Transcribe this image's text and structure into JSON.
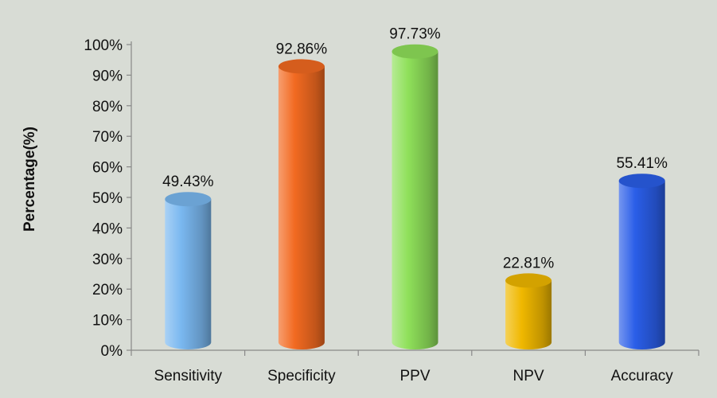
{
  "chart_data": {
    "type": "bar",
    "bar_style": "cylinder",
    "categories": [
      "Sensitivity",
      "Specificity",
      "PPV",
      "NPV",
      "Accuracy"
    ],
    "series": [
      {
        "values": [
          49.43,
          92.86,
          97.73,
          22.81,
          55.41
        ],
        "value_labels": [
          "49.43%",
          "92.86%",
          "97.73%",
          "22.81%",
          "55.41%"
        ],
        "colors": [
          "#7ab8f0",
          "#f26a21",
          "#8fe05a",
          "#f0b800",
          "#2a5ee8"
        ]
      }
    ],
    "title": "",
    "xlabel": "",
    "ylabel": "Percentage(%)",
    "ylim": [
      0,
      100
    ],
    "yticks": [
      0,
      10,
      20,
      30,
      40,
      50,
      60,
      70,
      80,
      90,
      100
    ],
    "ytick_labels": [
      "0%",
      "10%",
      "20%",
      "30%",
      "40%",
      "50%",
      "60%",
      "70%",
      "80%",
      "90%",
      "100%"
    ],
    "grid": false,
    "legend": "none"
  }
}
